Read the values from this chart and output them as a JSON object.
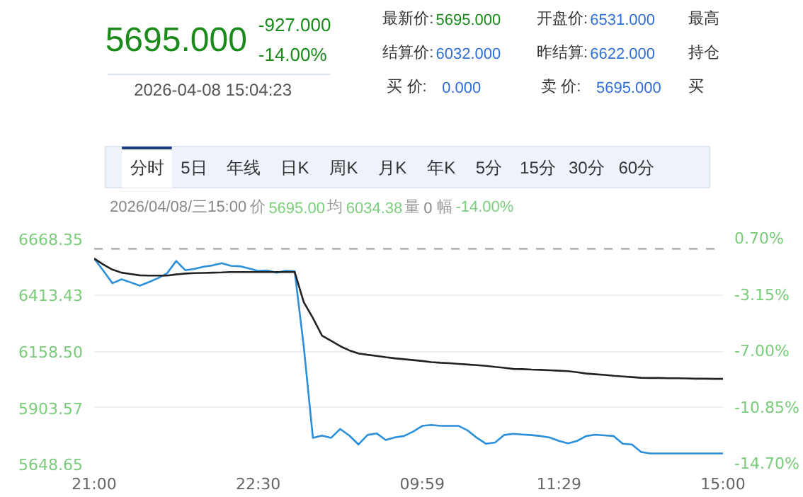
{
  "chart_data": [
    {
      "type": "other",
      "annotations": [
        "5695.000",
        "-927.000",
        "-14.00%",
        "2026-04-08 15:04:23",
        "最新价:",
        "5695.000",
        "开盘价:",
        "6531.000",
        "最高",
        "结算价:",
        "6032.000",
        "昨结算:",
        "6622.000",
        "持仓",
        "买  价:",
        "0.000",
        "卖  价:",
        "5695.000",
        "买",
        "分时",
        "5日",
        "年线",
        "日K",
        "周K",
        "月K",
        "年K",
        "5分",
        "15分",
        "30分",
        "60分",
        "2026/04/08/三15:00",
        "价",
        "5695.00",
        "均",
        "6034.38",
        "量",
        "0",
        "幅",
        "-14.00%"
      ],
      "colors": [
        "#1a8a1a",
        "#1a8a1a",
        "#1a8a1a",
        "#555555",
        "#333333",
        "#1a8a1a",
        "#333333",
        "#2f6fd6",
        "#333333",
        "#333333",
        "#2f6fd6",
        "#333333",
        "#2f6fd6",
        "#333333",
        "#333333",
        "#2f6fd6",
        "#333333",
        "#2f6fd6",
        "#333333",
        "#333333",
        "#333333",
        "#333333",
        "#333333",
        "#333333",
        "#333333",
        "#333333",
        "#333333",
        "#333333",
        "#333333",
        "#333333",
        "#888888",
        "#999999",
        "#7ccf7c",
        "#999999",
        "#7ccf7c",
        "#999999",
        "#888888",
        "#999999",
        "#7ccf7c"
      ]
    },
    {
      "type": "line",
      "categories": [
        "21:00",
        null,
        null,
        null,
        null,
        null,
        null,
        null,
        null,
        null,
        null,
        null,
        null,
        null,
        null,
        null,
        null,
        null,
        "22:30",
        null,
        null,
        null,
        null,
        null,
        null,
        null,
        null,
        null,
        null,
        null,
        null,
        null,
        null,
        null,
        null,
        null,
        "09:59",
        null,
        null,
        null,
        null,
        null,
        null,
        null,
        null,
        null,
        null,
        null,
        null,
        null,
        null,
        "11:29",
        null,
        null,
        null,
        null,
        null,
        null,
        null,
        null,
        null,
        null,
        null,
        null,
        null,
        null,
        null,
        null,
        null,
        "15:00"
      ],
      "ylim": [
        5648.65,
        6668.35
      ],
      "yticks": [
        {
          "value": 6668.35,
          "label": "6668.35"
        },
        {
          "value": 6413.43,
          "label": "6413.43"
        },
        {
          "value": 6158.5,
          "label": "6158.50"
        },
        {
          "value": 5903.57,
          "label": "5903.57"
        },
        {
          "value": 5648.65,
          "label": "5648.65"
        }
      ],
      "y2lim": [
        -14.7,
        0.7
      ],
      "y2ticks": [
        {
          "value": 0.7,
          "label": "0.70%"
        },
        {
          "value": -3.15,
          "label": "-3.15%"
        },
        {
          "value": -7.0,
          "label": "-7.00%"
        },
        {
          "value": -10.85,
          "label": "-10.85%"
        },
        {
          "value": -14.7,
          "label": "-14.70%"
        }
      ],
      "grid": "y",
      "marker": "none",
      "line_style": "solid",
      "ref_lines": [
        {
          "axis": "y",
          "value": 6622,
          "color": "#999999",
          "line_style": "dashed"
        }
      ],
      "series": [
        {
          "color": "#2b8fd9",
          "values": [
            6578,
            6523,
            6466,
            6484,
            6470,
            6455,
            6471,
            6489,
            6511,
            6567,
            6525,
            6531,
            6541,
            6547,
            6557,
            6545,
            6543,
            6533,
            6522,
            6524,
            6514,
            6522,
            6521,
            6179,
            5766,
            5776,
            5766,
            5806,
            5776,
            5736,
            5779,
            5786,
            5756,
            5768,
            5774,
            5794,
            5820,
            5824,
            5820,
            5820,
            5820,
            5799,
            5766,
            5739,
            5745,
            5779,
            5784,
            5781,
            5778,
            5774,
            5767,
            5752,
            5741,
            5752,
            5774,
            5780,
            5777,
            5774,
            5739,
            5736,
            5702,
            5695,
            5695,
            5695,
            5695,
            5695,
            5695,
            5695,
            5695,
            5695
          ]
        },
        {
          "color": "#222222",
          "values": [
            6578,
            6551,
            6528,
            6514,
            6508,
            6502,
            6501,
            6501,
            6501,
            6506,
            6510,
            6512,
            6513,
            6514,
            6515,
            6517,
            6517,
            6517,
            6517,
            6517,
            6517,
            6517,
            6517,
            6380,
            6309,
            6229,
            6205,
            6181,
            6162,
            6148,
            6142,
            6137,
            6131,
            6126,
            6122,
            6118,
            6114,
            6109,
            6106,
            6104,
            6101,
            6098,
            6095,
            6092,
            6087,
            6083,
            6078,
            6077,
            6075,
            6074,
            6072,
            6070,
            6068,
            6063,
            6057,
            6054,
            6051,
            6047,
            6044,
            6041,
            6038,
            6037,
            6037,
            6036,
            6036,
            6035,
            6034,
            6034,
            6033,
            6033
          ]
        }
      ]
    }
  ]
}
